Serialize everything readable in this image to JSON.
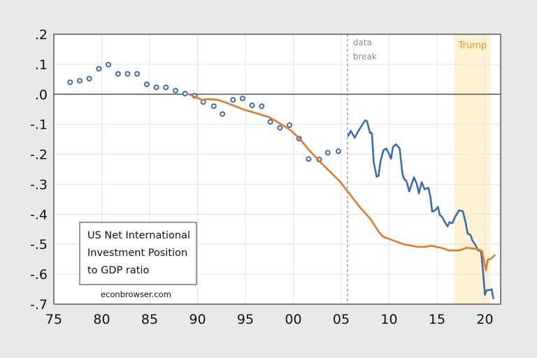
{
  "chart_data": {
    "type": "line",
    "title": "",
    "xlabel": "",
    "ylabel": "",
    "xlim": [
      1975,
      2022
    ],
    "ylim": [
      -0.7,
      0.2
    ],
    "grid": true,
    "legend": "none",
    "x_ticks": [
      {
        "value": 1975,
        "label": "75"
      },
      {
        "value": 1980,
        "label": "80"
      },
      {
        "value": 1985,
        "label": "85"
      },
      {
        "value": 1990,
        "label": "90"
      },
      {
        "value": 1995,
        "label": "95"
      },
      {
        "value": 2000,
        "label": "00"
      },
      {
        "value": 2005,
        "label": "05"
      },
      {
        "value": 2010,
        "label": "10"
      },
      {
        "value": 2015,
        "label": "15"
      },
      {
        "value": 2020,
        "label": "20"
      }
    ],
    "y_ticks": [
      {
        "value": 0.2,
        "label": ".2"
      },
      {
        "value": 0.1,
        "label": ".1"
      },
      {
        "value": 0.0,
        "label": ".0"
      },
      {
        "value": -0.1,
        "label": "-.1"
      },
      {
        "value": -0.2,
        "label": "-.2"
      },
      {
        "value": -0.3,
        "label": "-.3"
      },
      {
        "value": -0.4,
        "label": "-.4"
      },
      {
        "value": -0.5,
        "label": "-.5"
      },
      {
        "value": -0.6,
        "label": "-.6"
      },
      {
        "value": -0.7,
        "label": "-.7"
      }
    ],
    "textbox": [
      "US Net International",
      "Investment Position",
      "to GDP ratio"
    ],
    "credit": "econbrowser.com",
    "annotations": {
      "data_break": {
        "x": 2005.65,
        "lines": [
          "data",
          "break"
        ],
        "color": "#8c8c8c"
      },
      "trump": {
        "x_start": 2016.8,
        "x_end": 2020.55,
        "label": "Trump",
        "color": "#e8961e",
        "fill": "#fdf3d4"
      }
    },
    "series": [
      {
        "style": "markers",
        "color": "#3a6cb5",
        "x": [
          1976.7,
          1977.7,
          1978.7,
          1979.7,
          1980.7,
          1981.7,
          1982.7,
          1983.7,
          1984.7,
          1985.7,
          1986.7,
          1987.7,
          1988.7,
          1989.7,
          1990.6,
          1991.7,
          1992.6,
          1993.7,
          1994.7,
          1995.7,
          1996.7,
          1997.6,
          1998.6,
          1999.6,
          2000.6,
          2001.6,
          2002.7,
          2003.6,
          2004.7
        ],
        "y": [
          0.04,
          0.045,
          0.052,
          0.085,
          0.099,
          0.068,
          0.068,
          0.068,
          0.033,
          0.023,
          0.023,
          0.012,
          0.002,
          -0.005,
          -0.026,
          -0.04,
          -0.066,
          -0.019,
          -0.014,
          -0.037,
          -0.04,
          -0.092,
          -0.112,
          -0.103,
          -0.148,
          -0.216,
          -0.218,
          -0.195,
          -0.19
        ]
      },
      {
        "style": "line",
        "color": "#3a6cb5",
        "x": [
          2005.7,
          2006.0,
          2006.4,
          2006.8,
          2007.5,
          2007.7,
          2008.0,
          2008.2,
          2008.4,
          2008.7,
          2008.9,
          2009.1,
          2009.4,
          2009.7,
          2009.9,
          2010.2,
          2010.4,
          2010.7,
          2011.1,
          2011.4,
          2011.6,
          2011.8,
          2012.1,
          2012.6,
          2012.9,
          2013.1,
          2013.4,
          2013.7,
          2014.1,
          2014.3,
          2014.5,
          2014.8,
          2015.1,
          2015.3,
          2015.5,
          2015.8,
          2016.1,
          2016.3,
          2016.6,
          2016.9,
          2017.3,
          2017.7,
          2018.0,
          2018.2,
          2018.5,
          2018.7,
          2019.0,
          2019.3,
          2019.6,
          2019.8,
          2020.0,
          2020.2,
          2020.5,
          2020.7,
          2020.9
        ],
        "y": [
          -0.141,
          -0.122,
          -0.145,
          -0.122,
          -0.087,
          -0.09,
          -0.129,
          -0.129,
          -0.228,
          -0.275,
          -0.272,
          -0.223,
          -0.187,
          -0.181,
          -0.192,
          -0.215,
          -0.176,
          -0.167,
          -0.181,
          -0.268,
          -0.284,
          -0.289,
          -0.324,
          -0.277,
          -0.3,
          -0.331,
          -0.293,
          -0.317,
          -0.312,
          -0.34,
          -0.392,
          -0.387,
          -0.376,
          -0.404,
          -0.408,
          -0.425,
          -0.441,
          -0.427,
          -0.43,
          -0.408,
          -0.387,
          -0.39,
          -0.43,
          -0.465,
          -0.469,
          -0.488,
          -0.502,
          -0.521,
          -0.523,
          -0.591,
          -0.669,
          -0.653,
          -0.653,
          -0.65,
          -0.683
        ]
      },
      {
        "style": "line",
        "color": "#e07b28",
        "x": [
          1989.1,
          1990.5,
          1991.0,
          1992.2,
          1993.7,
          1994.9,
          1996.1,
          1997.5,
          1998.8,
          1999.8,
          2000.8,
          2001.5,
          2002.7,
          2003.7,
          2004.8,
          2005.9,
          2006.8,
          2008.1,
          2008.9,
          2009.4,
          2010.3,
          2011.5,
          2013.0,
          2013.7,
          2014.4,
          2015.4,
          2016.3,
          2017.3,
          2018.1,
          2019.2,
          2019.7,
          2020.1,
          2020.3,
          2020.6,
          2021.1
        ],
        "y": [
          0.0,
          -0.019,
          -0.016,
          -0.019,
          -0.037,
          -0.052,
          -0.063,
          -0.077,
          -0.101,
          -0.122,
          -0.153,
          -0.181,
          -0.223,
          -0.254,
          -0.289,
          -0.333,
          -0.371,
          -0.418,
          -0.458,
          -0.476,
          -0.486,
          -0.5,
          -0.509,
          -0.509,
          -0.505,
          -0.512,
          -0.521,
          -0.521,
          -0.512,
          -0.516,
          -0.523,
          -0.587,
          -0.552,
          -0.549,
          -0.535
        ]
      }
    ]
  }
}
